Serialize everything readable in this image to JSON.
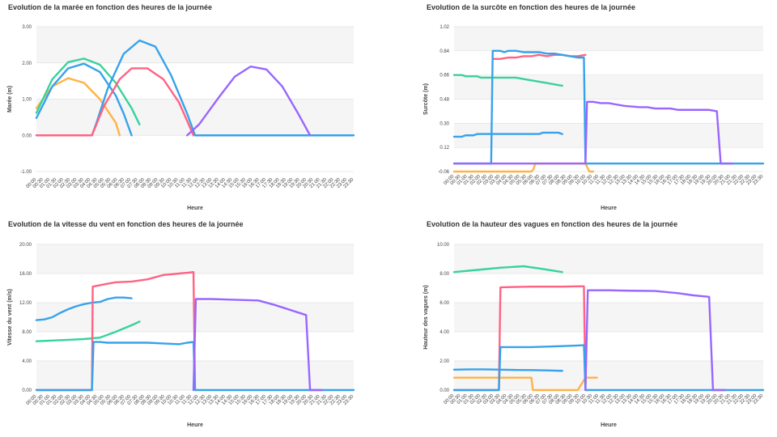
{
  "chart_data": [
    {
      "type": "line",
      "title": "Evolution de la marée en fonction des heures de la journée",
      "xlabel": "Heure",
      "ylabel": "Marée (m)",
      "ylim": [
        -1.0,
        3.0
      ],
      "yticks": [
        "3.00",
        "2.00",
        "1.00",
        "0.00",
        "-1.00"
      ],
      "series": [
        {
          "color": "#ffb347",
          "points": [
            [
              0,
              0.75
            ],
            [
              2,
              1.35
            ],
            [
              4,
              1.58
            ],
            [
              6,
              1.45
            ],
            [
              8,
              1.0
            ],
            [
              10,
              0.35
            ],
            [
              10.5,
              0
            ]
          ]
        },
        {
          "color": "#37d39a",
          "points": [
            [
              0,
              0.62
            ],
            [
              2,
              1.55
            ],
            [
              4,
              2.02
            ],
            [
              6,
              2.12
            ],
            [
              8,
              1.95
            ],
            [
              10,
              1.45
            ],
            [
              12,
              0.75
            ],
            [
              13,
              0.3
            ]
          ]
        },
        {
          "color": "#36a2eb",
          "points": [
            [
              0,
              0.48
            ],
            [
              2,
              1.35
            ],
            [
              4,
              1.85
            ],
            [
              6,
              1.98
            ],
            [
              8,
              1.75
            ],
            [
              10,
              1.1
            ],
            [
              11,
              0.6
            ],
            [
              12,
              0
            ]
          ]
        },
        {
          "color": "#36a2eb",
          "points": [
            [
              0,
              0
            ],
            [
              7,
              0
            ],
            [
              7.5,
              0.3
            ],
            [
              9,
              1.3
            ],
            [
              11,
              2.25
            ],
            [
              13,
              2.62
            ],
            [
              15,
              2.45
            ],
            [
              17,
              1.65
            ],
            [
              19,
              0.6
            ],
            [
              20,
              0
            ],
            [
              40,
              0
            ]
          ]
        },
        {
          "color": "#ff6384",
          "points": [
            [
              0,
              0
            ],
            [
              7,
              0
            ],
            [
              8.5,
              0.8
            ],
            [
              10.5,
              1.55
            ],
            [
              12,
              1.85
            ],
            [
              14,
              1.85
            ],
            [
              16,
              1.55
            ],
            [
              18,
              0.9
            ],
            [
              19.8,
              0
            ]
          ]
        },
        {
          "color": "#9966ff",
          "points": [
            [
              19,
              0
            ],
            [
              20.5,
              0.3
            ],
            [
              23,
              1.05
            ],
            [
              25,
              1.62
            ],
            [
              27,
              1.9
            ],
            [
              29,
              1.82
            ],
            [
              31,
              1.35
            ],
            [
              33,
              0.6
            ],
            [
              34.5,
              0
            ]
          ]
        }
      ]
    },
    {
      "type": "line",
      "title": "Evolution de la surcôte en fonction des heures de la journée",
      "xlabel": "Heure",
      "ylabel": "Surcôte (m)",
      "ylim": [
        -0.06,
        1.02
      ],
      "yticks": [
        "1.02",
        "0.84",
        "0.66",
        "0.48",
        "0.30",
        "0.12",
        "-0.06"
      ],
      "series": [
        {
          "color": "#ffb347",
          "points": [
            [
              0,
              -0.06
            ],
            [
              10,
              -0.06
            ],
            [
              10.3,
              -0.04
            ],
            [
              10.5,
              0
            ],
            [
              17,
              0
            ],
            [
              17.5,
              -0.06
            ],
            [
              18,
              -0.06
            ]
          ]
        },
        {
          "color": "#36a2eb",
          "points": [
            [
              0,
              0.2
            ],
            [
              1,
              0.2
            ],
            [
              1.5,
              0.21
            ],
            [
              2.5,
              0.21
            ],
            [
              3,
              0.22
            ],
            [
              11,
              0.22
            ],
            [
              11.5,
              0.23
            ],
            [
              13.5,
              0.23
            ],
            [
              14,
              0.22
            ]
          ]
        },
        {
          "color": "#37d39a",
          "points": [
            [
              0,
              0.66
            ],
            [
              1,
              0.66
            ],
            [
              1.5,
              0.65
            ],
            [
              3,
              0.65
            ],
            [
              3.5,
              0.64
            ],
            [
              8,
              0.64
            ],
            [
              9,
              0.63
            ],
            [
              10,
              0.62
            ],
            [
              11,
              0.61
            ],
            [
              12,
              0.6
            ],
            [
              13,
              0.59
            ],
            [
              14,
              0.58
            ]
          ]
        },
        {
          "color": "#ff6384",
          "points": [
            [
              5,
              0.78
            ],
            [
              6,
              0.78
            ],
            [
              7,
              0.79
            ],
            [
              8,
              0.79
            ],
            [
              9,
              0.8
            ],
            [
              10,
              0.8
            ],
            [
              11,
              0.81
            ],
            [
              12,
              0.8
            ],
            [
              13,
              0.81
            ],
            [
              14,
              0.81
            ],
            [
              15,
              0.8
            ],
            [
              16,
              0.8
            ],
            [
              17,
              0.81
            ]
          ]
        },
        {
          "color": "#36a2eb",
          "points": [
            [
              0,
              0
            ],
            [
              4.8,
              0
            ],
            [
              5,
              0.84
            ],
            [
              6,
              0.84
            ],
            [
              6.5,
              0.83
            ],
            [
              7,
              0.84
            ],
            [
              8,
              0.84
            ],
            [
              9,
              0.83
            ],
            [
              10,
              0.83
            ],
            [
              11,
              0.83
            ],
            [
              12,
              0.82
            ],
            [
              13,
              0.82
            ],
            [
              14,
              0.81
            ],
            [
              15,
              0.8
            ],
            [
              16,
              0.79
            ],
            [
              16.8,
              0.79
            ],
            [
              17,
              0
            ],
            [
              40,
              0
            ]
          ]
        },
        {
          "color": "#9966ff",
          "points": [
            [
              0,
              0
            ],
            [
              17,
              0
            ],
            [
              17.2,
              0.46
            ],
            [
              18,
              0.46
            ],
            [
              19,
              0.45
            ],
            [
              20,
              0.45
            ],
            [
              21,
              0.44
            ],
            [
              22,
              0.43
            ],
            [
              24,
              0.42
            ],
            [
              25,
              0.42
            ],
            [
              26,
              0.41
            ],
            [
              28,
              0.41
            ],
            [
              29,
              0.4
            ],
            [
              33,
              0.4
            ],
            [
              34,
              0.39
            ],
            [
              34.5,
              0
            ],
            [
              36,
              0
            ]
          ]
        }
      ]
    },
    {
      "type": "line",
      "title": "Evolution de la vitesse du vent en fonction des heures de la journée",
      "xlabel": "Heure",
      "ylabel": "Vitesse du vent (m/s)",
      "ylim": [
        0,
        20
      ],
      "yticks": [
        "20.00",
        "16.00",
        "12.00",
        "8.00",
        "4.00",
        "0.00"
      ],
      "series": [
        {
          "color": "#36a2eb",
          "points": [
            [
              0,
              9.6
            ],
            [
              1,
              9.7
            ],
            [
              2,
              10.0
            ],
            [
              3,
              10.6
            ],
            [
              4,
              11.1
            ],
            [
              5,
              11.5
            ],
            [
              6,
              11.8
            ],
            [
              7,
              12.0
            ],
            [
              8,
              12.1
            ],
            [
              9,
              12.5
            ],
            [
              10,
              12.7
            ],
            [
              11,
              12.7
            ],
            [
              12,
              12.6
            ]
          ]
        },
        {
          "color": "#37d39a",
          "points": [
            [
              0,
              6.7
            ],
            [
              2,
              6.8
            ],
            [
              4,
              6.9
            ],
            [
              6,
              7.0
            ],
            [
              8,
              7.2
            ],
            [
              10,
              8.0
            ],
            [
              12,
              8.9
            ],
            [
              13,
              9.4
            ]
          ]
        },
        {
          "color": "#ff6384",
          "points": [
            [
              0,
              0
            ],
            [
              7,
              0
            ],
            [
              7.1,
              14.2
            ],
            [
              8,
              14.4
            ],
            [
              9,
              14.6
            ],
            [
              10,
              14.8
            ],
            [
              12,
              14.9
            ],
            [
              14,
              15.2
            ],
            [
              16,
              15.8
            ],
            [
              18,
              16.0
            ],
            [
              19,
              16.1
            ],
            [
              19.8,
              16.2
            ],
            [
              20,
              0
            ]
          ]
        },
        {
          "color": "#36a2eb",
          "points": [
            [
              0,
              0
            ],
            [
              7,
              0
            ],
            [
              7.2,
              6.6
            ],
            [
              8,
              6.6
            ],
            [
              9,
              6.5
            ],
            [
              10,
              6.5
            ],
            [
              12,
              6.5
            ],
            [
              14,
              6.5
            ],
            [
              16,
              6.4
            ],
            [
              18,
              6.3
            ],
            [
              19,
              6.5
            ],
            [
              19.8,
              6.6
            ],
            [
              20,
              0
            ],
            [
              40,
              0
            ]
          ]
        },
        {
          "color": "#9966ff",
          "points": [
            [
              19.8,
              0
            ],
            [
              20.1,
              12.5
            ],
            [
              22,
              12.5
            ],
            [
              25,
              12.4
            ],
            [
              28,
              12.3
            ],
            [
              30,
              11.7
            ],
            [
              32,
              11.0
            ],
            [
              34,
              10.3
            ],
            [
              34.5,
              0
            ],
            [
              36,
              0
            ]
          ]
        }
      ]
    },
    {
      "type": "line",
      "title": "Evolution de la hauteur des vagues en fonction des heures de la journée",
      "xlabel": "Heure",
      "ylabel": "Hauteur des vagues (m)",
      "ylim": [
        0,
        10
      ],
      "yticks": [
        "10.00",
        "8.00",
        "6.00",
        "4.00",
        "2.00",
        "0.00"
      ],
      "series": [
        {
          "color": "#37d39a",
          "points": [
            [
              0,
              8.1
            ],
            [
              3,
              8.25
            ],
            [
              6,
              8.4
            ],
            [
              9,
              8.5
            ],
            [
              11,
              8.35
            ],
            [
              14,
              8.1
            ]
          ]
        },
        {
          "color": "#ffb347",
          "points": [
            [
              0,
              0.85
            ],
            [
              4,
              0.85
            ],
            [
              8,
              0.85
            ],
            [
              10,
              0.85
            ],
            [
              10.2,
              0
            ],
            [
              16,
              0
            ],
            [
              17,
              0.85
            ],
            [
              18.5,
              0.85
            ]
          ]
        },
        {
          "color": "#36a2eb",
          "points": [
            [
              0,
              1.4
            ],
            [
              2,
              1.42
            ],
            [
              4,
              1.42
            ],
            [
              6,
              1.4
            ],
            [
              8,
              1.38
            ],
            [
              10,
              1.37
            ],
            [
              12,
              1.35
            ],
            [
              14,
              1.32
            ]
          ]
        },
        {
          "color": "#ff6384",
          "points": [
            [
              0,
              0
            ],
            [
              5.8,
              0
            ],
            [
              6,
              7.05
            ],
            [
              8,
              7.08
            ],
            [
              10,
              7.1
            ],
            [
              12,
              7.1
            ],
            [
              14,
              7.1
            ],
            [
              16,
              7.12
            ],
            [
              16.8,
              7.12
            ],
            [
              17,
              0
            ]
          ]
        },
        {
          "color": "#36a2eb",
          "points": [
            [
              0,
              0
            ],
            [
              5.8,
              0
            ],
            [
              6,
              2.95
            ],
            [
              8,
              2.95
            ],
            [
              10,
              2.95
            ],
            [
              12,
              2.98
            ],
            [
              14,
              3.02
            ],
            [
              16,
              3.06
            ],
            [
              16.8,
              3.08
            ],
            [
              17,
              0
            ],
            [
              40,
              0
            ]
          ]
        },
        {
          "color": "#9966ff",
          "points": [
            [
              17,
              0
            ],
            [
              17.3,
              6.85
            ],
            [
              20,
              6.85
            ],
            [
              23,
              6.82
            ],
            [
              26,
              6.8
            ],
            [
              29,
              6.65
            ],
            [
              31,
              6.5
            ],
            [
              33,
              6.4
            ],
            [
              33.5,
              0
            ],
            [
              35,
              0
            ]
          ]
        }
      ]
    }
  ]
}
